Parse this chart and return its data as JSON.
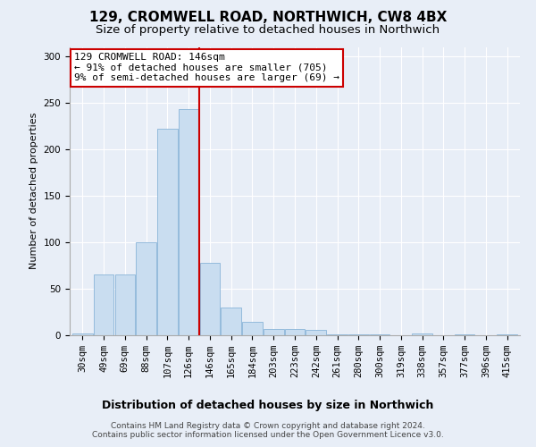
{
  "title": "129, CROMWELL ROAD, NORTHWICH, CW8 4BX",
  "subtitle": "Size of property relative to detached houses in Northwich",
  "xlabel": "Distribution of detached houses by size in Northwich",
  "ylabel": "Number of detached properties",
  "categories": [
    "30sqm",
    "49sqm",
    "69sqm",
    "88sqm",
    "107sqm",
    "126sqm",
    "146sqm",
    "165sqm",
    "184sqm",
    "203sqm",
    "223sqm",
    "242sqm",
    "261sqm",
    "280sqm",
    "300sqm",
    "319sqm",
    "338sqm",
    "357sqm",
    "377sqm",
    "396sqm",
    "415sqm"
  ],
  "values": [
    2,
    65,
    65,
    100,
    222,
    243,
    78,
    30,
    14,
    7,
    7,
    6,
    1,
    1,
    1,
    0,
    2,
    0,
    1,
    0,
    1
  ],
  "bar_color": "#c9ddf0",
  "bar_edge_color": "#8ab4d8",
  "vline_x_index": 6,
  "vline_color": "#cc0000",
  "ylim": [
    0,
    310
  ],
  "yticks": [
    0,
    50,
    100,
    150,
    200,
    250,
    300
  ],
  "annotation_text": "129 CROMWELL ROAD: 146sqm\n← 91% of detached houses are smaller (705)\n9% of semi-detached houses are larger (69) →",
  "annotation_box_color": "#ffffff",
  "annotation_box_edge_color": "#cc0000",
  "footer1": "Contains HM Land Registry data © Crown copyright and database right 2024.",
  "footer2": "Contains public sector information licensed under the Open Government Licence v3.0.",
  "bg_color": "#e8eef7",
  "plot_bg_color": "#e8eef7",
  "title_fontsize": 11,
  "subtitle_fontsize": 9.5,
  "xlabel_fontsize": 9,
  "ylabel_fontsize": 8,
  "tick_fontsize": 7.5,
  "annotation_fontsize": 8,
  "footer_fontsize": 6.5
}
